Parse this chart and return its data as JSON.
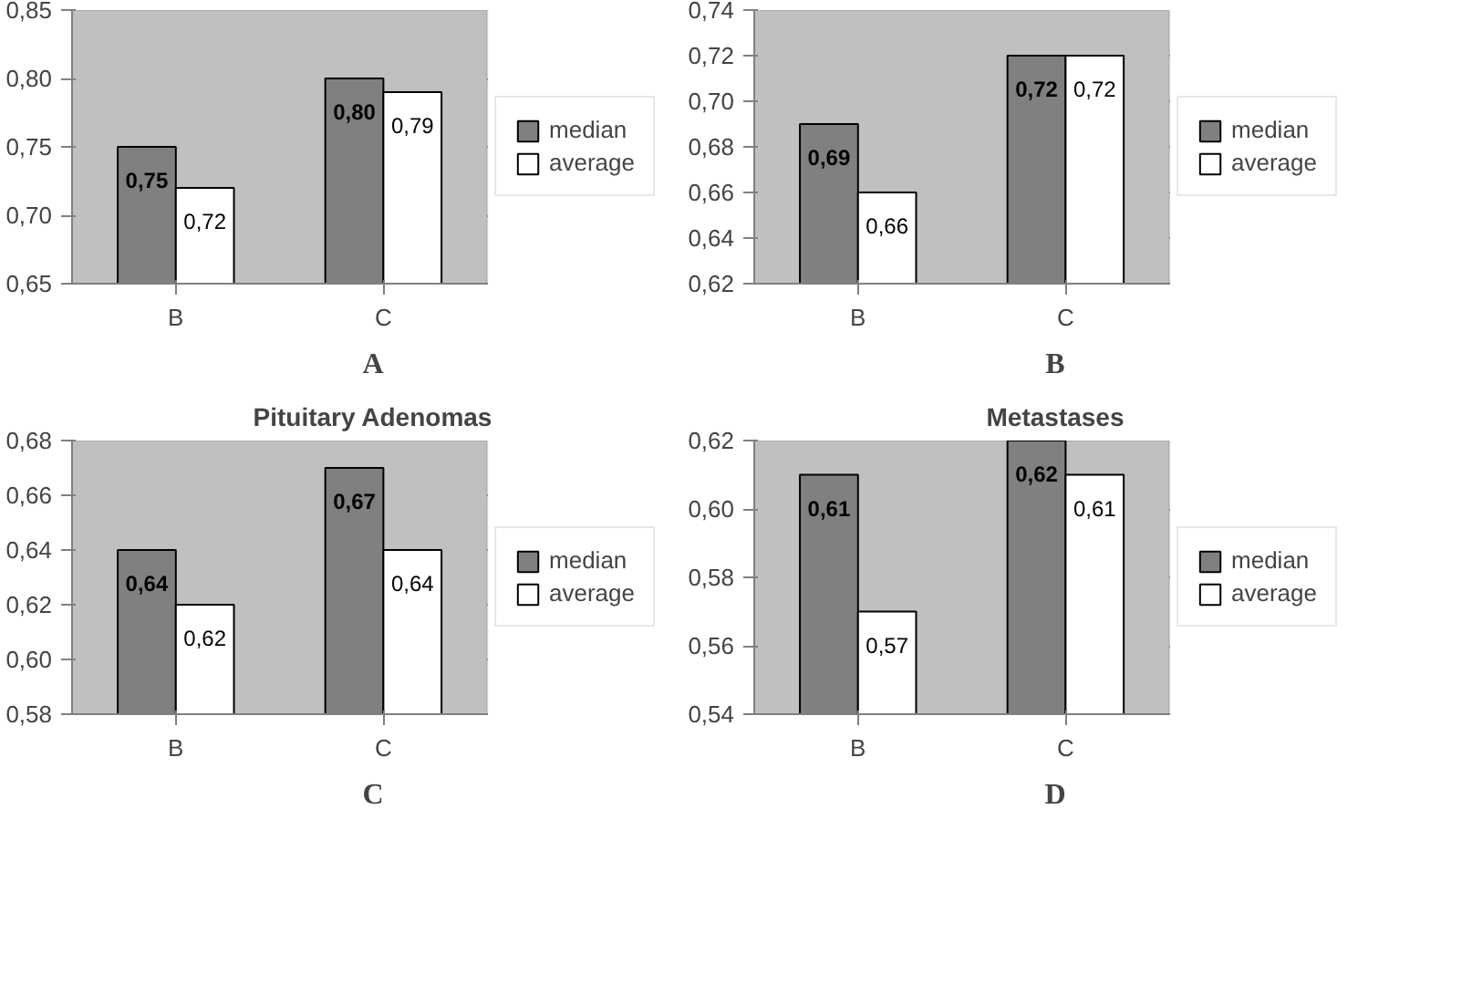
{
  "chart_data": [
    {
      "type": "bar",
      "categories": [
        "B",
        "C"
      ],
      "series": [
        {
          "name": "median",
          "color": "#808080",
          "values": [
            0.75,
            0.8
          ],
          "value_labels": [
            "0,75",
            "0,80"
          ]
        },
        {
          "name": "average",
          "color": "#ffffff",
          "values": [
            0.72,
            0.79
          ],
          "value_labels": [
            "0,72",
            "0,79"
          ]
        }
      ],
      "ylim": [
        0.65,
        0.85
      ],
      "yticks": [
        {
          "value": 0.65,
          "label": "0,65"
        },
        {
          "value": 0.7,
          "label": "0,70"
        },
        {
          "value": 0.75,
          "label": "0,75"
        },
        {
          "value": 0.8,
          "label": "0,80"
        },
        {
          "value": 0.85,
          "label": "0,85"
        }
      ],
      "grid": "y",
      "legend": "right",
      "annotations": [
        "A"
      ]
    },
    {
      "type": "bar",
      "categories": [
        "B",
        "C"
      ],
      "series": [
        {
          "name": "median",
          "color": "#808080",
          "values": [
            0.69,
            0.72
          ],
          "value_labels": [
            "0,69",
            "0,72"
          ]
        },
        {
          "name": "average",
          "color": "#ffffff",
          "values": [
            0.66,
            0.72
          ],
          "value_labels": [
            "0,66",
            "0,72"
          ]
        }
      ],
      "ylim": [
        0.62,
        0.74
      ],
      "yticks": [
        {
          "value": 0.62,
          "label": "0,62"
        },
        {
          "value": 0.64,
          "label": "0,64"
        },
        {
          "value": 0.66,
          "label": "0,66"
        },
        {
          "value": 0.68,
          "label": "0,68"
        },
        {
          "value": 0.7,
          "label": "0,70"
        },
        {
          "value": 0.72,
          "label": "0,72"
        },
        {
          "value": 0.74,
          "label": "0,74"
        }
      ],
      "grid": "y",
      "legend": "right",
      "annotations": [
        "B"
      ]
    },
    {
      "type": "bar",
      "title": "Pituitary Adenomas",
      "categories": [
        "B",
        "C"
      ],
      "series": [
        {
          "name": "median",
          "color": "#808080",
          "values": [
            0.64,
            0.67
          ],
          "value_labels": [
            "0,64",
            "0,67"
          ]
        },
        {
          "name": "average",
          "color": "#ffffff",
          "values": [
            0.62,
            0.64
          ],
          "value_labels": [
            "0,62",
            "0,64"
          ]
        }
      ],
      "ylim": [
        0.58,
        0.68
      ],
      "yticks": [
        {
          "value": 0.58,
          "label": "0,58"
        },
        {
          "value": 0.6,
          "label": "0,60"
        },
        {
          "value": 0.62,
          "label": "0,62"
        },
        {
          "value": 0.64,
          "label": "0,64"
        },
        {
          "value": 0.66,
          "label": "0,66"
        },
        {
          "value": 0.68,
          "label": "0,68"
        }
      ],
      "grid": "y",
      "legend": "right",
      "annotations": [
        "C"
      ]
    },
    {
      "type": "bar",
      "title": "Metastases",
      "categories": [
        "B",
        "C"
      ],
      "series": [
        {
          "name": "median",
          "color": "#808080",
          "values": [
            0.61,
            0.62
          ],
          "value_labels": [
            "0,61",
            "0,62"
          ]
        },
        {
          "name": "average",
          "color": "#ffffff",
          "values": [
            0.57,
            0.61
          ],
          "value_labels": [
            "0,57",
            "0,61"
          ]
        }
      ],
      "ylim": [
        0.54,
        0.62
      ],
      "yticks": [
        {
          "value": 0.54,
          "label": "0,54"
        },
        {
          "value": 0.56,
          "label": "0,56"
        },
        {
          "value": 0.58,
          "label": "0,58"
        },
        {
          "value": 0.6,
          "label": "0,60"
        },
        {
          "value": 0.62,
          "label": "0,62"
        }
      ],
      "grid": "y",
      "legend": "right",
      "annotations": [
        "D"
      ]
    }
  ]
}
